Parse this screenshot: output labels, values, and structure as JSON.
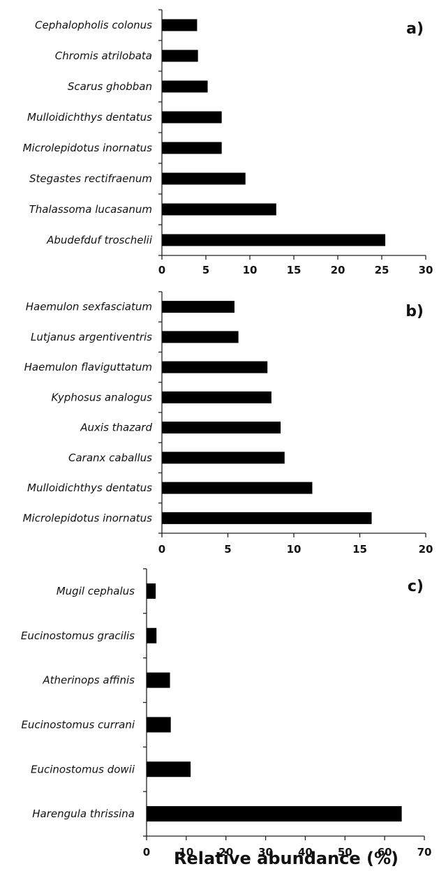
{
  "chart_data": [
    {
      "panel": "a)",
      "type": "bar",
      "orientation": "horizontal",
      "categories": [
        "Cephalopholis colonus",
        "Chromis atrilobata",
        "Scarus ghobban",
        "Mulloidichthys dentatus",
        "Microlepidotus inornatus",
        "Stegastes rectifraenum",
        "Thalassoma lucasanum",
        "Abudefduf troschelii"
      ],
      "values": [
        4.0,
        4.1,
        5.2,
        6.8,
        6.8,
        9.5,
        13.0,
        25.4
      ],
      "xlim": [
        0,
        30
      ],
      "xticks": [
        "0",
        "5",
        "10",
        "15",
        "20",
        "25",
        "30"
      ],
      "grid": false
    },
    {
      "panel": "b)",
      "type": "bar",
      "orientation": "horizontal",
      "categories": [
        "Haemulon sexfasciatum",
        "Lutjanus argentiventris",
        "Haemulon flaviguttatum",
        "Kyphosus analogus",
        "Auxis thazard",
        "Caranx caballus",
        "Mulloidichthys dentatus",
        "Microlepidotus inornatus"
      ],
      "values": [
        5.5,
        5.8,
        8.0,
        8.3,
        9.0,
        9.3,
        11.4,
        15.9
      ],
      "xlim": [
        0,
        20
      ],
      "xticks": [
        "0",
        "5",
        "10",
        "15",
        "20"
      ],
      "grid": false
    },
    {
      "panel": "c)",
      "type": "bar",
      "orientation": "horizontal",
      "categories": [
        "Mugil cephalus",
        "Eucinostomus gracilis",
        "Atherinops affinis",
        "Eucinostomus currani",
        "Eucinostomus dowii",
        "Harengula thrissina"
      ],
      "values": [
        2.3,
        2.5,
        5.9,
        6.1,
        11.1,
        64.3
      ],
      "xlim": [
        0,
        70
      ],
      "xticks": [
        "0",
        "10",
        "20",
        "30",
        "40",
        "50",
        "60",
        "70"
      ],
      "grid": false
    }
  ],
  "xlabel": "Relative abundance (%)"
}
